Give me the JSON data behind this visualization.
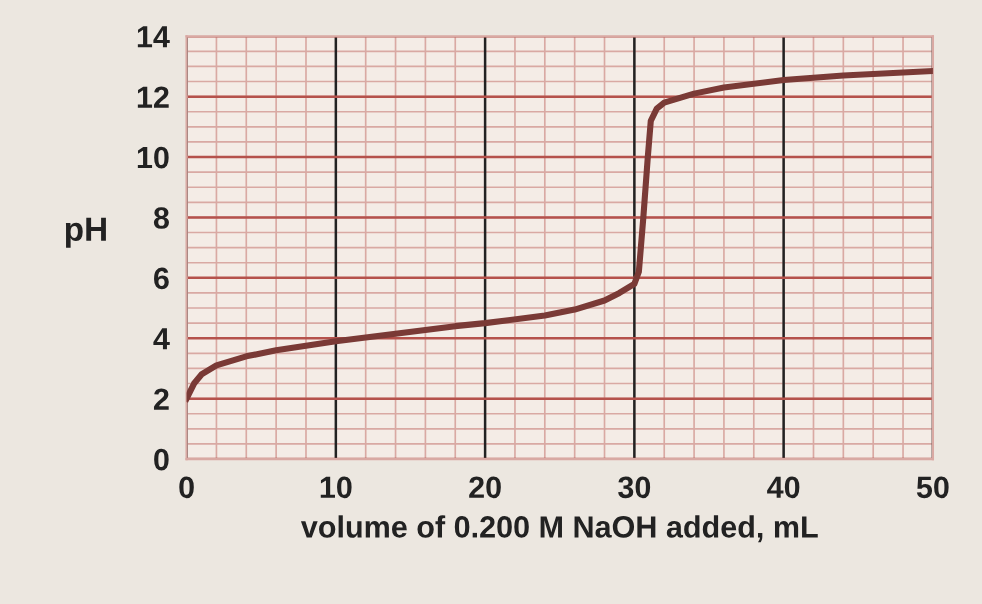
{
  "chart_data": {
    "type": "line",
    "xlabel": "volume of 0.200 M NaOH added, mL",
    "ylabel": "pH",
    "xlim": [
      0,
      50
    ],
    "xticks": [
      0,
      10,
      20,
      30,
      40,
      50
    ],
    "ylim": [
      0,
      14
    ],
    "yticks": [
      0,
      2,
      4,
      6,
      8,
      10,
      12,
      14
    ],
    "grid": true,
    "marker": "none",
    "line_style": "solid",
    "series": [
      {
        "color": "#7a3a36",
        "x": [
          0,
          0.5,
          1,
          2,
          4,
          6,
          8,
          10,
          14,
          18,
          20,
          24,
          26,
          28,
          29,
          30,
          30.3,
          30.6,
          30.9,
          31.1,
          31.5,
          32,
          34,
          36,
          40,
          44,
          50
        ],
        "values": [
          2.0,
          2.5,
          2.8,
          3.1,
          3.4,
          3.6,
          3.75,
          3.9,
          4.15,
          4.4,
          4.5,
          4.75,
          4.95,
          5.25,
          5.5,
          5.8,
          6.2,
          8,
          10,
          11.2,
          11.6,
          11.8,
          12.1,
          12.3,
          12.55,
          12.7,
          12.85
        ]
      }
    ]
  }
}
